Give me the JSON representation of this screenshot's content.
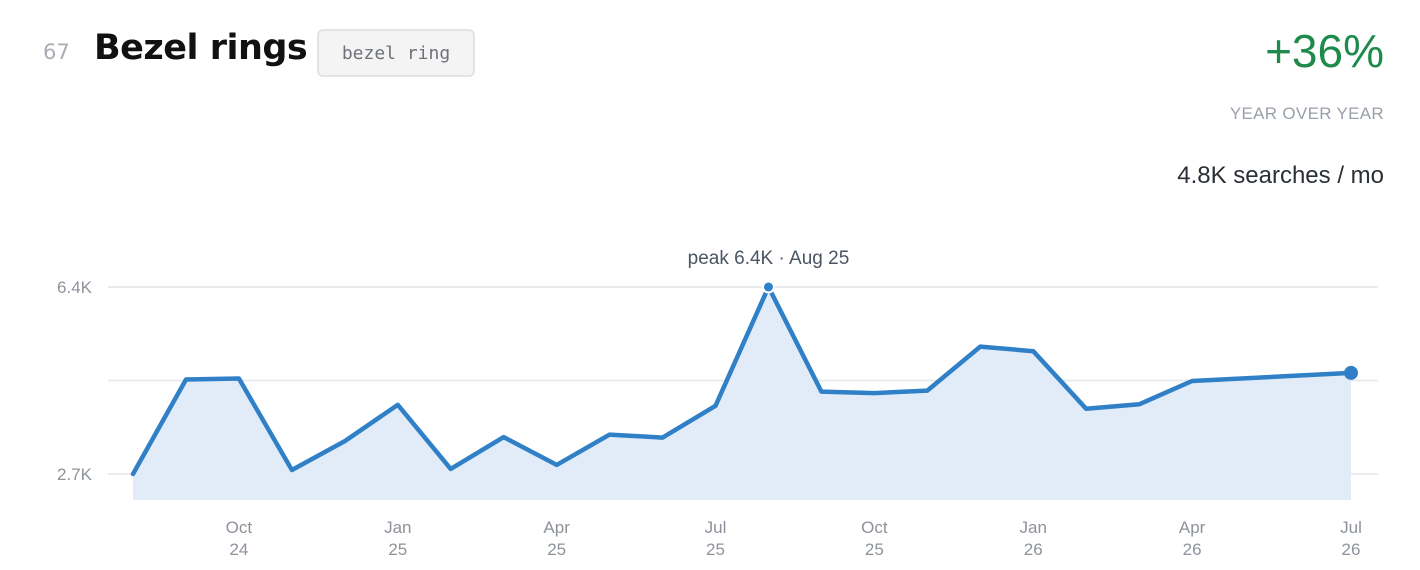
{
  "header": {
    "rank": "67",
    "title": "Bezel rings",
    "tag": "bezel ring",
    "yoy_change": "+36%",
    "yoy_label": "YEAR OVER YEAR",
    "volume": "4.8K searches / mo"
  },
  "colors": {
    "line": "#2f80c7",
    "area": "#e1ecf8",
    "positive": "#1e8a4c"
  },
  "chart_data": {
    "type": "area",
    "title": "",
    "xlabel": "",
    "ylabel": "",
    "ylim": [
      2.7,
      6.4
    ],
    "yticks": [
      {
        "value": 2.7,
        "label": "2.7K"
      },
      {
        "value": 6.4,
        "label": "6.4K"
      }
    ],
    "gridlines": [
      2.7,
      4.55,
      6.4
    ],
    "xticks": [
      {
        "date": "2024-10",
        "line1": "Oct",
        "line2": "24"
      },
      {
        "date": "2025-01",
        "line1": "Jan",
        "line2": "25"
      },
      {
        "date": "2025-04",
        "line1": "Apr",
        "line2": "25"
      },
      {
        "date": "2025-07",
        "line1": "Jul",
        "line2": "25"
      },
      {
        "date": "2025-10",
        "line1": "Oct",
        "line2": "25"
      },
      {
        "date": "2026-01",
        "line1": "Jan",
        "line2": "26"
      },
      {
        "date": "2026-04",
        "line1": "Apr",
        "line2": "26"
      },
      {
        "date": "2026-07",
        "line1": "Jul",
        "line2": "26"
      }
    ],
    "series": [
      {
        "x": [
          "2024-08",
          "2024-09",
          "2024-10",
          "2024-11",
          "2024-12",
          "2025-01",
          "2025-02",
          "2025-03",
          "2025-04",
          "2025-05",
          "2025-06",
          "2025-07",
          "2025-08",
          "2025-09",
          "2025-10",
          "2025-11",
          "2025-12",
          "2026-01",
          "2026-02",
          "2026-03",
          "2026-04",
          "2026-07"
        ],
        "values": [
          2.7,
          4.57,
          4.59,
          2.78,
          3.35,
          4.07,
          2.8,
          3.43,
          2.88,
          3.48,
          3.42,
          4.05,
          6.4,
          4.33,
          4.3,
          4.35,
          5.22,
          5.13,
          3.99,
          4.08,
          4.54,
          4.7
        ]
      }
    ],
    "peak_annotation": "peak 6.4K · Aug 25",
    "peak_date": "2025-08"
  }
}
